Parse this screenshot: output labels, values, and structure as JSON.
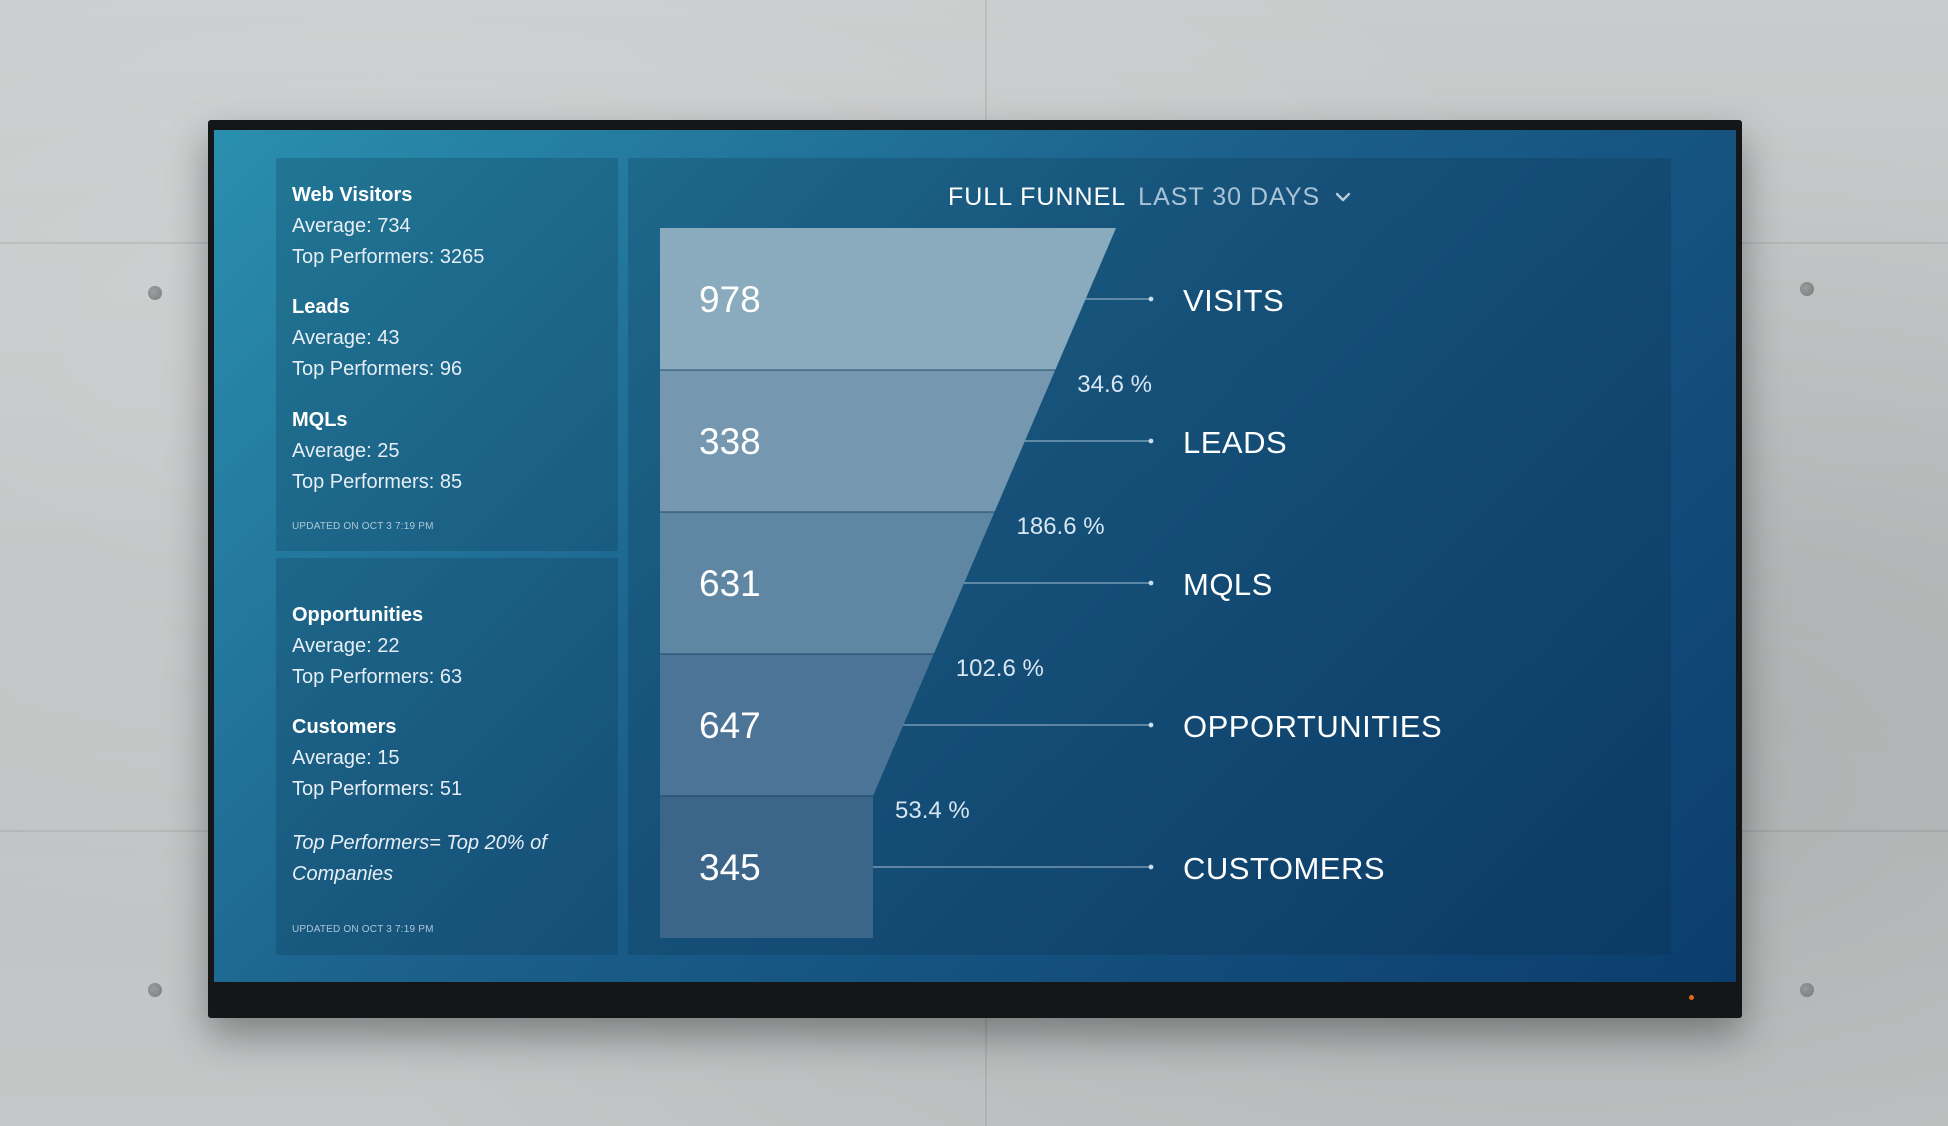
{
  "stats_top": {
    "groups": [
      {
        "title": "Web Visitors",
        "average": "Average: 734",
        "top": "Top Performers: 3265"
      },
      {
        "title": "Leads",
        "average": "Average: 43",
        "top": "Top Performers: 96"
      },
      {
        "title": "MQLs",
        "average": "Average: 25",
        "top": "Top Performers: 85"
      }
    ],
    "updated": "UPDATED ON OCT 3 7:19 PM"
  },
  "stats_bottom": {
    "groups": [
      {
        "title": "Opportunities",
        "average": "Average: 22",
        "top": "Top Performers: 63"
      },
      {
        "title": "Customers",
        "average": "Average: 15",
        "top": "Top Performers: 51"
      }
    ],
    "note": "Top Performers= Top 20% of Companies",
    "updated": "UPDATED ON OCT 3 7:19 PM"
  },
  "funnel": {
    "title": "FULL FUNNEL",
    "period": "LAST 30 DAYS",
    "period_icon": "chevron-down-icon"
  },
  "chart_data": {
    "type": "funnel",
    "stages": [
      {
        "label": "VISITS",
        "value": 978
      },
      {
        "label": "LEADS",
        "value": 338
      },
      {
        "label": "MQLS",
        "value": 631
      },
      {
        "label": "OPPORTUNITIES",
        "value": 647
      },
      {
        "label": "CUSTOMERS",
        "value": 345
      }
    ],
    "conversion_rates": [
      "34.6 %",
      "186.6 %",
      "102.6 %",
      "53.4 %"
    ]
  },
  "colors": {
    "screen_start": "#2a8fae",
    "screen_end": "#0b3d6d",
    "funnel_fills": [
      "#8aaabd",
      "#7598b0",
      "#5f86a3",
      "#4b7496",
      "#3b6689"
    ]
  }
}
